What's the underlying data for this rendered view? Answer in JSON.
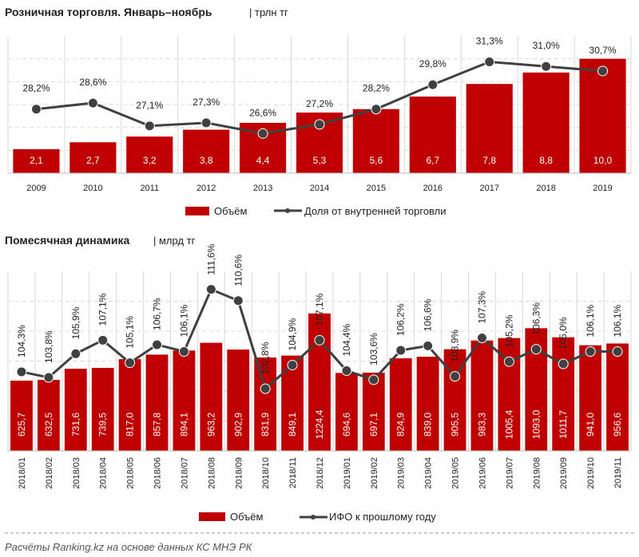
{
  "colors": {
    "bar": "#c00000",
    "line": "#404040",
    "grid": "#d9d9d9"
  },
  "footer": "Расчёты Ranking.kz на основе данных КС МНЭ РК",
  "chart_data": [
    {
      "type": "bar+line",
      "title": "Розничная торговля. Январь–ноябрь",
      "unit": "| трлн тг",
      "categories": [
        "2009",
        "2010",
        "2011",
        "2012",
        "2013",
        "2014",
        "2015",
        "2016",
        "2017",
        "2018",
        "2019"
      ],
      "series": [
        {
          "name": "Объём",
          "type": "bar",
          "values": [
            2.1,
            2.7,
            3.2,
            3.8,
            4.4,
            5.3,
            5.6,
            6.7,
            7.8,
            8.8,
            10.0
          ],
          "labels": [
            "2,1",
            "2,7",
            "3,2",
            "3,8",
            "4,4",
            "5,3",
            "5,6",
            "6,7",
            "7,8",
            "8,8",
            "10,0"
          ]
        },
        {
          "name": "Доля от внутренней торговли",
          "type": "line",
          "values": [
            28.2,
            28.6,
            27.1,
            27.3,
            26.6,
            27.2,
            28.2,
            29.8,
            31.3,
            31.0,
            30.7
          ],
          "labels": [
            "28,2%",
            "28,6%",
            "27,1%",
            "27,3%",
            "26,6%",
            "27,2%",
            "28,2%",
            "29,8%",
            "31,3%",
            "31,0%",
            "30,7%"
          ]
        }
      ],
      "ylim_bar": [
        0,
        12
      ],
      "ylim_line": [
        24,
        33
      ],
      "grid": true,
      "legend": "bottom"
    },
    {
      "type": "bar+line",
      "title": "Помесячная динамика",
      "unit": "| млрд тг",
      "categories": [
        "2018/01",
        "2018/02",
        "2018/03",
        "2018/04",
        "2018/05",
        "2018/06",
        "2018/07",
        "2018/08",
        "2018/09",
        "2018/10",
        "2018/11",
        "2018/12",
        "2019/01",
        "2019/02",
        "2019/03",
        "2019/04",
        "2019/05",
        "2019/06",
        "2019/07",
        "2019/08",
        "2019/09",
        "2019/10",
        "2019/11"
      ],
      "series": [
        {
          "name": "Объём",
          "type": "bar",
          "values": [
            625.7,
            632.5,
            731.6,
            739.5,
            817.0,
            857.8,
            894.1,
            963.2,
            902.9,
            831.9,
            849.1,
            1224.4,
            694.6,
            697.1,
            824.9,
            839.0,
            905.5,
            983.3,
            1005.4,
            1093.0,
            1011.7,
            941.0,
            956.6
          ],
          "labels": [
            "625,7",
            "632,5",
            "731,6",
            "739,5",
            "817,0",
            "857,8",
            "894,1",
            "963,2",
            "902,9",
            "831,9",
            "849,1",
            "1224,4",
            "694,6",
            "697,1",
            "824,9",
            "839,0",
            "905,5",
            "983,3",
            "1005,4",
            "1093,0",
            "1011,7",
            "941,0",
            "956,6"
          ]
        },
        {
          "name": "ИФО к прошлому году",
          "type": "line",
          "values": [
            104.3,
            103.8,
            105.9,
            107.1,
            105.1,
            106.7,
            106.1,
            111.6,
            110.6,
            102.8,
            104.9,
            107.1,
            104.4,
            103.6,
            106.2,
            106.6,
            103.9,
            107.3,
            105.2,
            106.3,
            105.0,
            106.1,
            106.1
          ],
          "labels": [
            "104,3%",
            "103,8%",
            "105,9%",
            "107,1%",
            "105,1%",
            "106,7%",
            "106,1%",
            "111,6%",
            "110,6%",
            "102,8%",
            "104,9%",
            "107,1%",
            "104,4%",
            "103,6%",
            "106,2%",
            "106,6%",
            "103,9%",
            "107,3%",
            "105,2%",
            "106,3%",
            "105,0%",
            "106,1%",
            "106,1%"
          ]
        }
      ],
      "ylim_bar": [
        0,
        1600
      ],
      "ylim_line": [
        97.3,
        113.2
      ],
      "grid": true,
      "legend": "bottom"
    }
  ]
}
